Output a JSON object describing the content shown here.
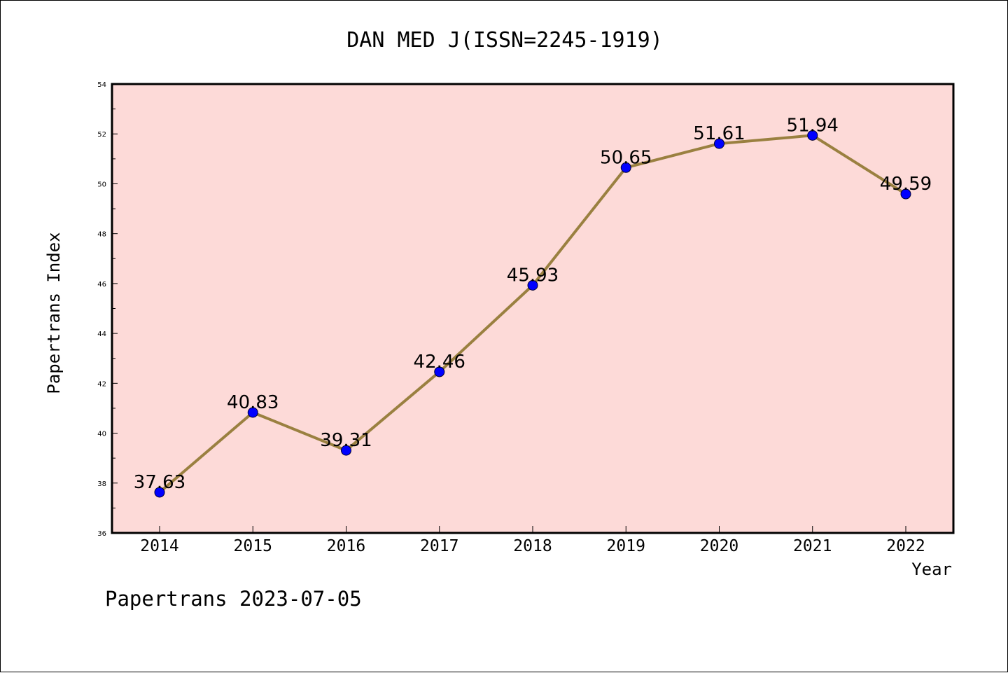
{
  "chart_data": {
    "type": "line",
    "title": "DAN MED J(ISSN=2245-1919)",
    "xlabel": "Year",
    "ylabel": "Papertrans Index",
    "categories": [
      "2014",
      "2015",
      "2016",
      "2017",
      "2018",
      "2019",
      "2020",
      "2021",
      "2022"
    ],
    "values": [
      37.63,
      40.83,
      39.31,
      42.46,
      45.93,
      50.65,
      51.61,
      51.94,
      49.59
    ],
    "data_labels": [
      "37.63",
      "40.83",
      "39.31",
      "42.46",
      "45.93",
      "50.65",
      "51.61",
      "51.94",
      "49.59"
    ],
    "ylim": [
      36,
      54
    ],
    "yticks": [
      "36",
      "38",
      "40",
      "42",
      "44",
      "46",
      "48",
      "50",
      "52",
      "54"
    ],
    "grid": false,
    "colors": {
      "plot_background": "#fddad8",
      "line": "#9a8040",
      "marker": "#0000ff"
    }
  },
  "footer": "Papertrans 2023-07-05"
}
